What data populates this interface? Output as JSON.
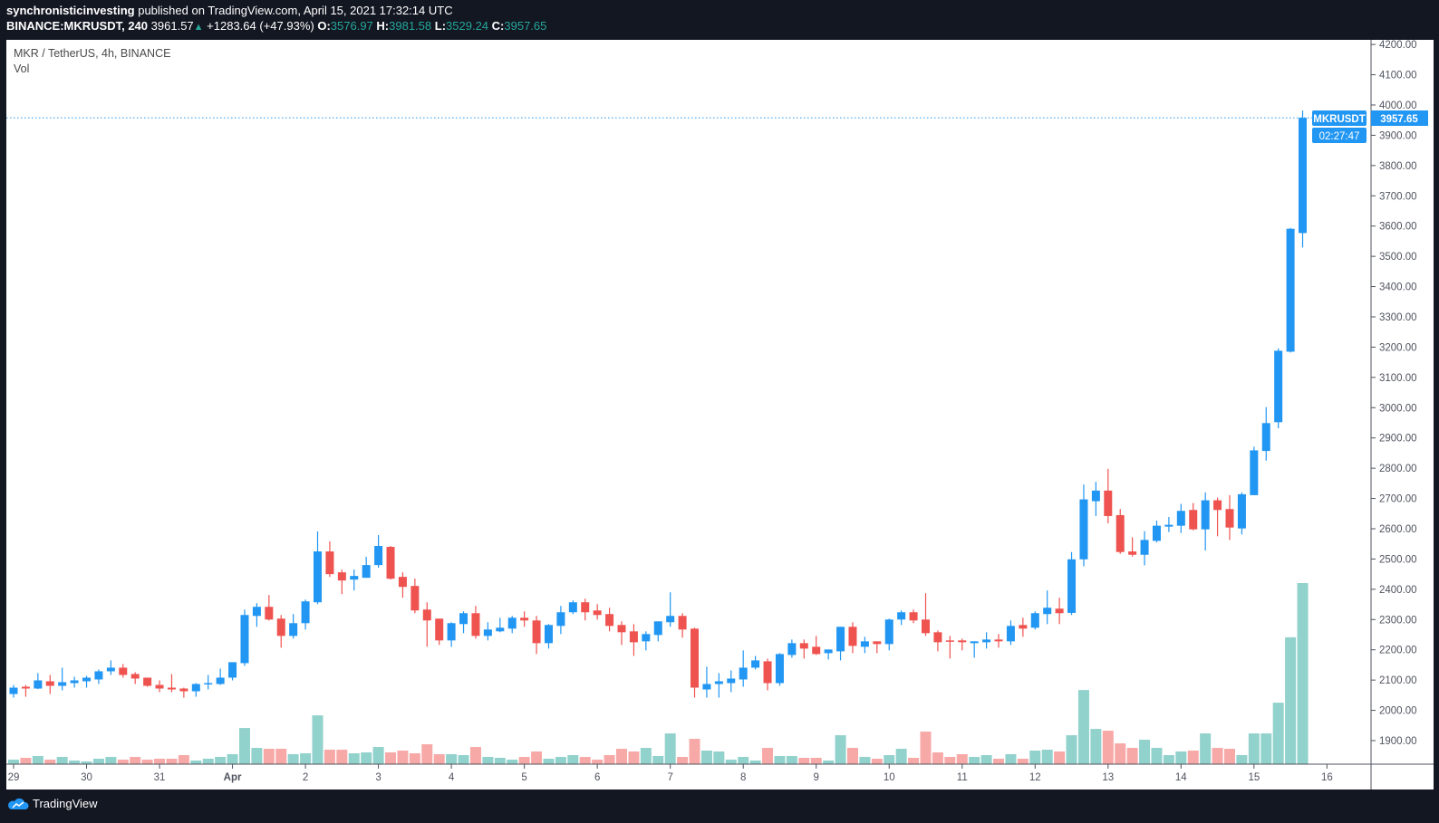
{
  "header": {
    "author": "synchronisticinvesting",
    "published": "published on TradingView.com, April 15, 2021 17:32:14 UTC",
    "symbol_interval": "BINANCE:MKRUSDT, 240",
    "last": "3961.57",
    "change": "+1283.64 (+47.93%)",
    "o_label": "O:",
    "o": "3576.97",
    "h_label": "H:",
    "h": "3981.58",
    "l_label": "L:",
    "l": "3529.24",
    "c_label": "C:",
    "c": "3957.65"
  },
  "legend": {
    "title": "MKR / TetherUS, 4h, BINANCE",
    "volume": "Vol"
  },
  "price_label": {
    "symbol": "MKRUSDT",
    "price": "3957.65",
    "countdown": "02:27:47"
  },
  "footer": {
    "brand": "TradingView"
  },
  "colors": {
    "up": "#2196f3",
    "down": "#ef5350",
    "vol_up": "#92d2cc",
    "vol_down": "#f7a9a7",
    "last_line": "#2196f3"
  },
  "chart_data": {
    "type": "candlestick",
    "interval": "4h",
    "price_ticks": [
      "1900.00",
      "2000.00",
      "2100.00",
      "2200.00",
      "2300.00",
      "2400.00",
      "2500.00",
      "2600.00",
      "2700.00",
      "2800.00",
      "2900.00",
      "3000.00",
      "3100.00",
      "3200.00",
      "3300.00",
      "3400.00",
      "3500.00",
      "3600.00",
      "3700.00",
      "3800.00",
      "3900.00",
      "4000.00",
      "4100.00",
      "4200.00"
    ],
    "ylim": [
      1820,
      4260
    ],
    "last_price": 3957.65,
    "time_labels": [
      {
        "label": "29",
        "index": 0
      },
      {
        "label": "30",
        "index": 6
      },
      {
        "label": "31",
        "index": 12
      },
      {
        "label": "Apr",
        "index": 18
      },
      {
        "label": "2",
        "index": 24
      },
      {
        "label": "3",
        "index": 30
      },
      {
        "label": "4",
        "index": 36
      },
      {
        "label": "5",
        "index": 42
      },
      {
        "label": "6",
        "index": 48
      },
      {
        "label": "7",
        "index": 54
      },
      {
        "label": "8",
        "index": 60
      },
      {
        "label": "9",
        "index": 66
      },
      {
        "label": "10",
        "index": 72
      },
      {
        "label": "11",
        "index": 78
      },
      {
        "label": "12",
        "index": 84
      },
      {
        "label": "13",
        "index": 90
      },
      {
        "label": "14",
        "index": 96
      },
      {
        "label": "15",
        "index": 102
      },
      {
        "label": "16",
        "index": 108
      }
    ],
    "ohlc_fields": [
      "open",
      "high",
      "low",
      "close"
    ],
    "candles": [
      [
        2054,
        2084,
        2042,
        2075
      ],
      [
        2078,
        2084,
        2045,
        2072
      ],
      [
        2072,
        2123,
        2070,
        2099
      ],
      [
        2096,
        2117,
        2054,
        2081
      ],
      [
        2081,
        2141,
        2066,
        2093
      ],
      [
        2090,
        2111,
        2075,
        2099
      ],
      [
        2096,
        2114,
        2075,
        2108
      ],
      [
        2102,
        2135,
        2087,
        2129
      ],
      [
        2129,
        2165,
        2117,
        2141
      ],
      [
        2141,
        2153,
        2108,
        2117
      ],
      [
        2120,
        2126,
        2087,
        2105
      ],
      [
        2108,
        2108,
        2078,
        2081
      ],
      [
        2084,
        2099,
        2060,
        2072
      ],
      [
        2075,
        2120,
        2060,
        2069
      ],
      [
        2072,
        2075,
        2042,
        2063
      ],
      [
        2063,
        2090,
        2045,
        2087
      ],
      [
        2087,
        2117,
        2069,
        2090
      ],
      [
        2087,
        2138,
        2084,
        2108
      ],
      [
        2108,
        2159,
        2099,
        2159
      ],
      [
        2156,
        2333,
        2147,
        2315
      ],
      [
        2312,
        2354,
        2276,
        2342
      ],
      [
        2342,
        2381,
        2297,
        2300
      ],
      [
        2303,
        2315,
        2207,
        2246
      ],
      [
        2246,
        2318,
        2237,
        2288
      ],
      [
        2288,
        2366,
        2267,
        2360
      ],
      [
        2357,
        2591,
        2351,
        2525
      ],
      [
        2525,
        2558,
        2441,
        2450
      ],
      [
        2456,
        2465,
        2384,
        2429
      ],
      [
        2432,
        2465,
        2396,
        2444
      ],
      [
        2438,
        2507,
        2438,
        2480
      ],
      [
        2480,
        2579,
        2471,
        2543
      ],
      [
        2540,
        2543,
        2432,
        2435
      ],
      [
        2441,
        2456,
        2372,
        2408
      ],
      [
        2411,
        2435,
        2321,
        2330
      ],
      [
        2333,
        2357,
        2210,
        2297
      ],
      [
        2303,
        2303,
        2216,
        2231
      ],
      [
        2231,
        2291,
        2210,
        2288
      ],
      [
        2285,
        2327,
        2255,
        2321
      ],
      [
        2321,
        2345,
        2237,
        2246
      ],
      [
        2246,
        2291,
        2231,
        2267
      ],
      [
        2261,
        2306,
        2258,
        2273
      ],
      [
        2270,
        2312,
        2255,
        2306
      ],
      [
        2306,
        2327,
        2276,
        2297
      ],
      [
        2297,
        2312,
        2186,
        2222
      ],
      [
        2222,
        2285,
        2204,
        2282
      ],
      [
        2279,
        2345,
        2252,
        2324
      ],
      [
        2324,
        2363,
        2318,
        2357
      ],
      [
        2357,
        2369,
        2297,
        2324
      ],
      [
        2330,
        2351,
        2300,
        2315
      ],
      [
        2318,
        2339,
        2261,
        2279
      ],
      [
        2282,
        2294,
        2216,
        2258
      ],
      [
        2261,
        2285,
        2180,
        2225
      ],
      [
        2228,
        2261,
        2198,
        2252
      ],
      [
        2249,
        2294,
        2228,
        2294
      ],
      [
        2291,
        2390,
        2276,
        2312
      ],
      [
        2312,
        2321,
        2240,
        2267
      ],
      [
        2270,
        2273,
        2042,
        2075
      ],
      [
        2069,
        2144,
        2042,
        2087
      ],
      [
        2087,
        2123,
        2042,
        2096
      ],
      [
        2090,
        2132,
        2060,
        2105
      ],
      [
        2102,
        2198,
        2078,
        2141
      ],
      [
        2141,
        2180,
        2135,
        2165
      ],
      [
        2162,
        2171,
        2066,
        2090
      ],
      [
        2090,
        2189,
        2081,
        2186
      ],
      [
        2183,
        2234,
        2174,
        2222
      ],
      [
        2222,
        2234,
        2171,
        2204
      ],
      [
        2210,
        2246,
        2183,
        2186
      ],
      [
        2189,
        2201,
        2168,
        2201
      ],
      [
        2195,
        2276,
        2165,
        2276
      ],
      [
        2276,
        2291,
        2189,
        2213
      ],
      [
        2210,
        2243,
        2189,
        2228
      ],
      [
        2228,
        2228,
        2189,
        2219
      ],
      [
        2219,
        2303,
        2198,
        2300
      ],
      [
        2300,
        2330,
        2282,
        2324
      ],
      [
        2324,
        2333,
        2288,
        2297
      ],
      [
        2300,
        2387,
        2246,
        2255
      ],
      [
        2258,
        2264,
        2195,
        2225
      ],
      [
        2231,
        2246,
        2171,
        2228
      ],
      [
        2231,
        2237,
        2198,
        2225
      ],
      [
        2222,
        2228,
        2174,
        2228
      ],
      [
        2225,
        2258,
        2204,
        2234
      ],
      [
        2234,
        2252,
        2207,
        2228
      ],
      [
        2228,
        2297,
        2216,
        2279
      ],
      [
        2282,
        2306,
        2243,
        2270
      ],
      [
        2273,
        2327,
        2267,
        2321
      ],
      [
        2318,
        2396,
        2285,
        2339
      ],
      [
        2336,
        2372,
        2285,
        2321
      ],
      [
        2322,
        2523,
        2315,
        2499
      ],
      [
        2499,
        2746,
        2476,
        2697
      ],
      [
        2691,
        2755,
        2642,
        2726
      ],
      [
        2726,
        2798,
        2618,
        2642
      ],
      [
        2645,
        2665,
        2517,
        2523
      ],
      [
        2525,
        2572,
        2508,
        2514
      ],
      [
        2514,
        2592,
        2479,
        2563
      ],
      [
        2560,
        2627,
        2555,
        2610
      ],
      [
        2607,
        2639,
        2589,
        2613
      ],
      [
        2610,
        2682,
        2586,
        2659
      ],
      [
        2662,
        2685,
        2595,
        2598
      ],
      [
        2598,
        2720,
        2528,
        2694
      ],
      [
        2694,
        2703,
        2575,
        2662
      ],
      [
        2665,
        2711,
        2563,
        2604
      ],
      [
        2601,
        2720,
        2581,
        2714
      ],
      [
        2711,
        2871,
        2711,
        2859
      ],
      [
        2857,
        3002,
        2825,
        2949
      ],
      [
        2952,
        3196,
        2932,
        3188
      ],
      [
        3185,
        3594,
        3182,
        3591
      ],
      [
        3576.97,
        3981.58,
        3529.24,
        3957.65
      ]
    ],
    "volume_units": "relative",
    "volumes": [
      15,
      21,
      27,
      15,
      24,
      12,
      9,
      18,
      24,
      15,
      24,
      15,
      18,
      18,
      30,
      12,
      18,
      24,
      33,
      120,
      54,
      51,
      51,
      33,
      36,
      162,
      48,
      48,
      36,
      39,
      57,
      39,
      45,
      36,
      66,
      33,
      33,
      30,
      57,
      24,
      21,
      15,
      24,
      42,
      18,
      24,
      30,
      24,
      15,
      30,
      51,
      42,
      54,
      27,
      102,
      24,
      84,
      45,
      42,
      15,
      24,
      12,
      54,
      27,
      27,
      21,
      21,
      12,
      96,
      54,
      24,
      18,
      30,
      51,
      21,
      108,
      39,
      24,
      33,
      24,
      30,
      18,
      33,
      18,
      45,
      48,
      42,
      96,
      246,
      117,
      111,
      69,
      54,
      81,
      54,
      30,
      42,
      45,
      102,
      54,
      51,
      30,
      102,
      102,
      204,
      421,
      601
    ]
  }
}
